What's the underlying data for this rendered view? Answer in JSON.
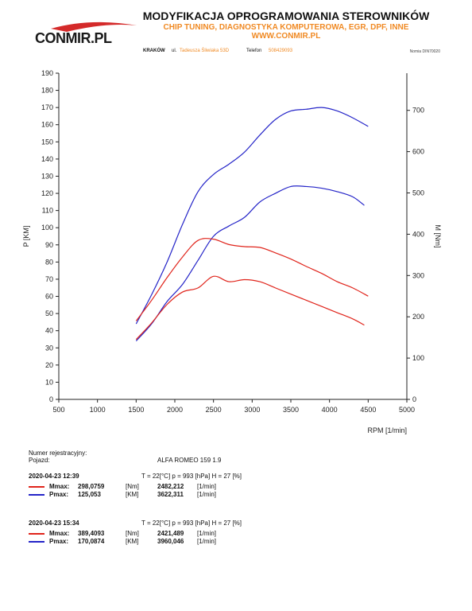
{
  "header": {
    "logo_text": "CONMIR.PL",
    "title": "MODYFIKACJA OPROGRAMOWANIA STEROWNIKÓW",
    "subtitle": "CHIP TUNING, DIAGNOSTYKA KOMPUTEROWA, EGR, DPF, INNE",
    "website": "WWW.CONMIR.PL",
    "city": "KRAKÓW",
    "street_label": "ul.",
    "street": "Tadeusza Śliwiaka 53D",
    "phone_label": "Telefon",
    "phone": "508429093",
    "stand_label": "Nomia DIN70020"
  },
  "vehicle": {
    "reg_label": "Numer rejestracyjny:",
    "vehicle_label": "Pojazd:",
    "vehicle_value": "ALFA ROMEO   159 1.9"
  },
  "measurements": [
    {
      "datetime": "2020-04-23  12:39",
      "conditions": "T = 22[°C]  p = 993 [hPa]  H = 27 [%]",
      "rows": [
        {
          "label": "Mmax:",
          "value": "298,0759",
          "unit": "[Nm]",
          "rpm": "2482,212",
          "rpm_unit": "[1/min]",
          "color": "#e0241b"
        },
        {
          "label": "Pmax:",
          "value": "125,053",
          "unit": "[KM]",
          "rpm": "3622,311",
          "rpm_unit": "[1/min]",
          "color": "#2424c8"
        }
      ]
    },
    {
      "datetime": "2020-04-23  15:34",
      "conditions": "T = 22[°C]  p = 993 [hPa]  H = 27 [%]",
      "rows": [
        {
          "label": "Mmax:",
          "value": "389,4093",
          "unit": "[Nm]",
          "rpm": "2421,489",
          "rpm_unit": "[1/min]",
          "color": "#e0241b"
        },
        {
          "label": "Pmax:",
          "value": "170,0874",
          "unit": "[KM]",
          "rpm": "3960,046",
          "rpm_unit": "[1/min]",
          "color": "#2424c8"
        }
      ]
    }
  ],
  "chart_data": {
    "type": "line",
    "xlabel": "RPM [1/min]",
    "ylabel_left": "P [KM]",
    "ylabel_right": "M [Nm]",
    "xlim": [
      500,
      5000
    ],
    "ylim_left": [
      0,
      190
    ],
    "ylim_right": [
      0,
      790
    ],
    "xticks": [
      "500",
      "1000",
      "1500",
      "2000",
      "2500",
      "3000",
      "3500",
      "4000",
      "4500",
      "5000"
    ],
    "yticks_left": [
      "0",
      "10",
      "20",
      "30",
      "40",
      "50",
      "60",
      "70",
      "80",
      "90",
      "100",
      "110",
      "120",
      "130",
      "140",
      "150",
      "160",
      "170",
      "180",
      "190"
    ],
    "yticks_right": [
      "0",
      "100",
      "200",
      "300",
      "400",
      "500",
      "600",
      "700"
    ],
    "grid": false,
    "series": [
      {
        "axis": "left",
        "color": "#2424c8",
        "x": [
          1500,
          1700,
          1900,
          2100,
          2300,
          2500,
          2700,
          2900,
          3100,
          3300,
          3500,
          3700,
          3900,
          4100,
          4300,
          4450
        ],
        "y": [
          34,
          44,
          57,
          67,
          81,
          95,
          101,
          106,
          115,
          120,
          124,
          124,
          123,
          121,
          118,
          113
        ]
      },
      {
        "axis": "left",
        "color": "#2424c8",
        "x": [
          1500,
          1700,
          1900,
          2100,
          2300,
          2500,
          2700,
          2900,
          3100,
          3300,
          3500,
          3700,
          3900,
          4100,
          4300,
          4500
        ],
        "y": [
          44,
          61,
          80,
          102,
          121,
          131,
          137,
          144,
          154,
          163,
          168,
          169,
          170,
          168,
          164,
          159
        ]
      },
      {
        "axis": "right",
        "color": "#e0241b",
        "x": [
          1500,
          1700,
          1900,
          2100,
          2300,
          2500,
          2700,
          2900,
          3100,
          3300,
          3500,
          3700,
          3900,
          4100,
          4300,
          4450
        ],
        "y": [
          145,
          185,
          230,
          260,
          270,
          298,
          285,
          290,
          285,
          270,
          255,
          240,
          225,
          210,
          195,
          180
        ]
      },
      {
        "axis": "right",
        "color": "#e0241b",
        "x": [
          1500,
          1700,
          1900,
          2100,
          2300,
          2500,
          2700,
          2900,
          3100,
          3300,
          3500,
          3700,
          3900,
          4100,
          4300,
          4500
        ],
        "y": [
          190,
          240,
          295,
          345,
          385,
          388,
          375,
          370,
          368,
          355,
          340,
          322,
          305,
          285,
          270,
          250
        ]
      }
    ]
  }
}
